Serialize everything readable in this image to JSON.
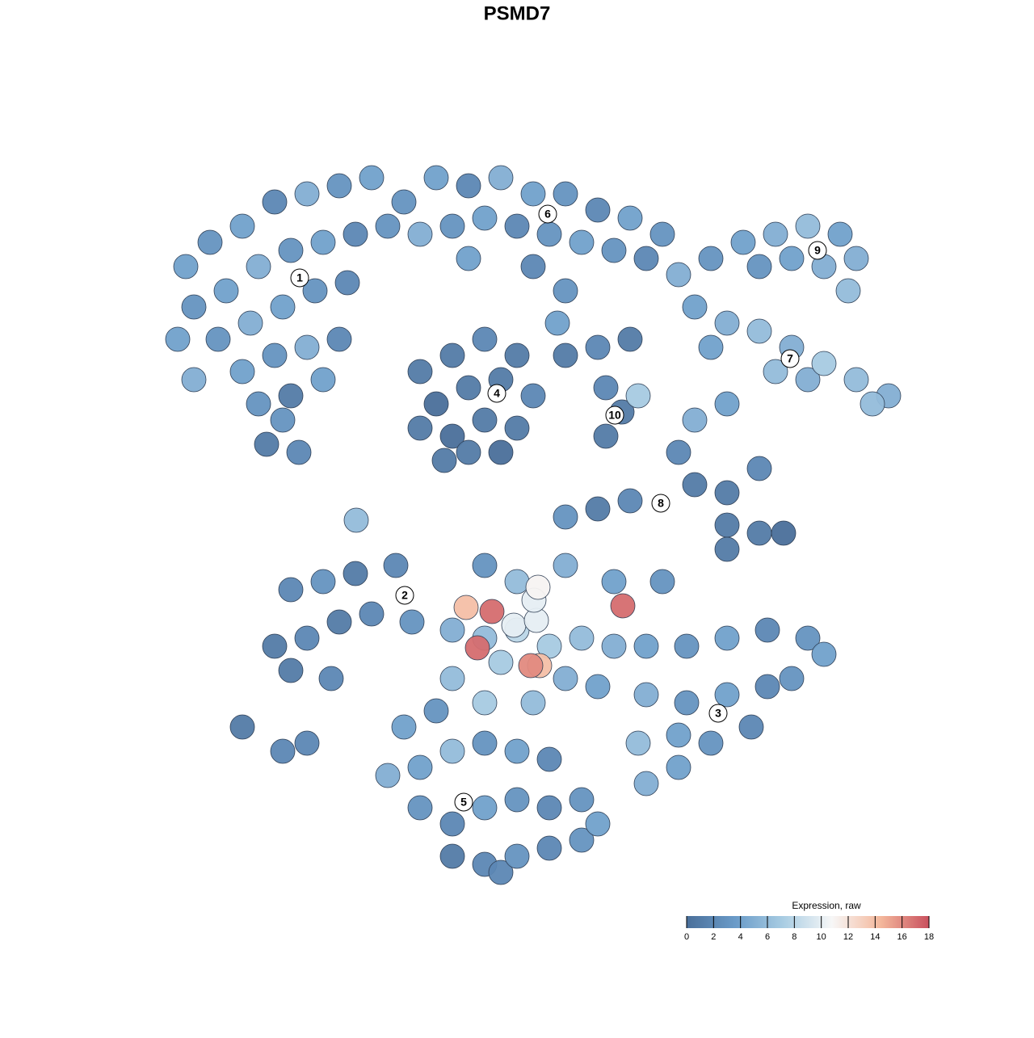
{
  "chart_data": {
    "type": "scatter",
    "title": "PSMD7",
    "xlim": [
      -64,
      64
    ],
    "ylim": [
      -64,
      64
    ],
    "x": [
      -41,
      -38,
      -34,
      -30,
      -26,
      -22,
      -18,
      -40,
      -36,
      -32,
      -28,
      -24,
      -20,
      -16,
      -42,
      -37,
      -33,
      -29,
      -25,
      -21,
      -34,
      -30,
      -26,
      -22,
      -32,
      -28,
      -24,
      -31,
      -27,
      -29,
      -40,
      -14,
      -10,
      -6,
      -2,
      2,
      6,
      10,
      14,
      18,
      -12,
      -8,
      -4,
      0,
      4,
      8,
      12,
      16,
      20,
      -6,
      2,
      6,
      5,
      -12,
      -8,
      -4,
      0,
      -10,
      -6,
      -2,
      2,
      -12,
      -8,
      -4,
      0,
      -6,
      -2,
      -9,
      6,
      10,
      14,
      11,
      13,
      11,
      15,
      24,
      28,
      32,
      36,
      40,
      42,
      30,
      34,
      38,
      41,
      22,
      26,
      30,
      34,
      38,
      42,
      46,
      24,
      32,
      36,
      44,
      26,
      22,
      20,
      22,
      26,
      30,
      26,
      30,
      33,
      26,
      14,
      10,
      6,
      -28,
      -24,
      -20,
      -15,
      -30,
      -26,
      -22,
      -28,
      -23,
      -18,
      -13,
      -34,
      -29,
      -26,
      -4,
      0,
      6,
      12,
      18,
      -8,
      -4,
      0,
      4,
      8,
      12,
      16,
      -8,
      -2,
      6,
      10,
      2,
      -4,
      -6.3,
      -3.1,
      -4.9,
      1.7,
      2.8,
      13.1,
      2.6,
      -0.4,
      2.4,
      2.1,
      21,
      26,
      31,
      36,
      38,
      16,
      21,
      26,
      31,
      34,
      15,
      20,
      24,
      29,
      16,
      20,
      -14,
      -10,
      -16,
      -12,
      -8,
      -4,
      0,
      4,
      -12,
      -8,
      -4,
      0,
      4,
      8,
      10,
      -8,
      -4,
      0,
      4,
      8,
      -2,
      -19.9
    ],
    "y": [
      31,
      34,
      36,
      39,
      40,
      41,
      42,
      26,
      28,
      31,
      33,
      34,
      35,
      36,
      22,
      22,
      24,
      26,
      28,
      29,
      18,
      20,
      21,
      22,
      14,
      15,
      17,
      9,
      8,
      12,
      17,
      39,
      42,
      41,
      42,
      40,
      40,
      38,
      37,
      35,
      35,
      36,
      37,
      36,
      35,
      34,
      33,
      32,
      30,
      32,
      31,
      28,
      24,
      18,
      20,
      22,
      20,
      14,
      16,
      17,
      15,
      11,
      10,
      12,
      11,
      8,
      8,
      7,
      20,
      21,
      22,
      16,
      13,
      10,
      15,
      32,
      34,
      35,
      36,
      35,
      32,
      31,
      32,
      31,
      28,
      26,
      24,
      23,
      21,
      19,
      17,
      15,
      21,
      18,
      17,
      14,
      14,
      12,
      8,
      4,
      3,
      6,
      -1,
      -2,
      -2,
      -4,
      2,
      1,
      0,
      -9,
      -8,
      -7,
      -6,
      -16,
      -15,
      -13,
      -19,
      -20,
      -12,
      -13,
      -26,
      -29,
      -28,
      -6,
      -8,
      -6,
      -8,
      -8,
      -14,
      -15,
      -14,
      -16,
      -15,
      -16,
      -16,
      -20,
      -18,
      -20,
      -21,
      -23,
      -23,
      -11.2,
      -11.7,
      -16.2,
      -18.4,
      -18.4,
      -11,
      -8.7,
      -13.4,
      -12.8,
      -10.3,
      -16,
      -15,
      -14,
      -15,
      -17,
      -22,
      -23,
      -22,
      -21,
      -20,
      -28,
      -27,
      -28,
      -26,
      -33,
      -31,
      -26,
      -24,
      -32,
      -31,
      -29,
      -28,
      -29,
      -30,
      -36,
      -38,
      -36,
      -35,
      -36,
      -35,
      -38,
      -42,
      -43,
      -42,
      -41,
      -40,
      -44,
      -0.4
    ],
    "values": [
      4,
      3,
      4,
      2,
      5,
      3,
      4,
      3,
      4,
      5,
      3,
      4,
      2,
      3,
      4,
      3,
      5,
      4,
      3,
      2,
      4,
      3,
      5,
      2,
      3,
      1,
      4,
      1,
      2,
      3,
      5,
      3,
      4,
      2,
      5,
      4,
      3,
      2,
      4,
      3,
      5,
      3,
      4,
      2,
      3,
      4,
      3,
      2,
      5,
      4,
      2,
      3,
      4,
      1,
      1,
      2,
      1,
      0,
      1,
      1,
      2,
      1,
      0,
      1,
      1,
      1,
      0,
      1,
      1,
      2,
      1,
      2,
      1,
      1,
      7,
      3,
      4,
      5,
      6,
      4,
      5,
      3,
      4,
      5,
      6,
      4,
      5,
      6,
      5,
      7,
      6,
      5,
      4,
      6,
      5,
      6,
      4,
      5,
      2,
      1,
      1,
      2,
      1,
      1,
      0,
      1,
      2,
      1,
      3,
      2,
      3,
      1,
      2,
      1,
      2,
      1,
      1,
      2,
      2,
      3,
      1,
      2,
      2,
      3,
      6,
      5,
      4,
      3,
      5,
      6,
      8,
      7,
      6,
      5,
      4,
      6,
      7,
      5,
      4,
      6,
      7,
      14,
      17,
      17,
      16,
      14,
      17,
      11,
      10,
      10,
      10,
      3,
      4,
      2,
      3,
      4,
      5,
      3,
      4,
      2,
      3,
      6,
      4,
      3,
      2,
      5,
      4,
      4,
      3,
      5,
      4,
      6,
      3,
      4,
      2,
      3,
      2,
      4,
      3,
      2,
      3,
      4,
      1,
      2,
      3,
      2,
      3,
      2,
      6
    ],
    "annotations": [
      {
        "text": "1",
        "x": -26.9,
        "y": 29.6
      },
      {
        "text": "6",
        "x": 3.8,
        "y": 37.5
      },
      {
        "text": "9",
        "x": 37.2,
        "y": 33
      },
      {
        "text": "7",
        "x": 33.8,
        "y": 19.6
      },
      {
        "text": "4",
        "x": -2.5,
        "y": 15.3
      },
      {
        "text": "10",
        "x": 12.1,
        "y": 12.6
      },
      {
        "text": "8",
        "x": 17.8,
        "y": 1.7
      },
      {
        "text": "2",
        "x": -13.9,
        "y": -9.7
      },
      {
        "text": "3",
        "x": 24.9,
        "y": -24.3
      },
      {
        "text": "5",
        "x": -6.6,
        "y": -35.3
      }
    ],
    "colorbar": {
      "title": "Expression, raw",
      "clim": [
        0,
        18
      ],
      "ticks": [
        0,
        2,
        4,
        6,
        8,
        10,
        12,
        14,
        16,
        18
      ],
      "colors": [
        "#4a6f9a",
        "#6a9bc8",
        "#a9cde3",
        "#f7f7f7",
        "#f4b89c",
        "#c9505e"
      ]
    }
  }
}
